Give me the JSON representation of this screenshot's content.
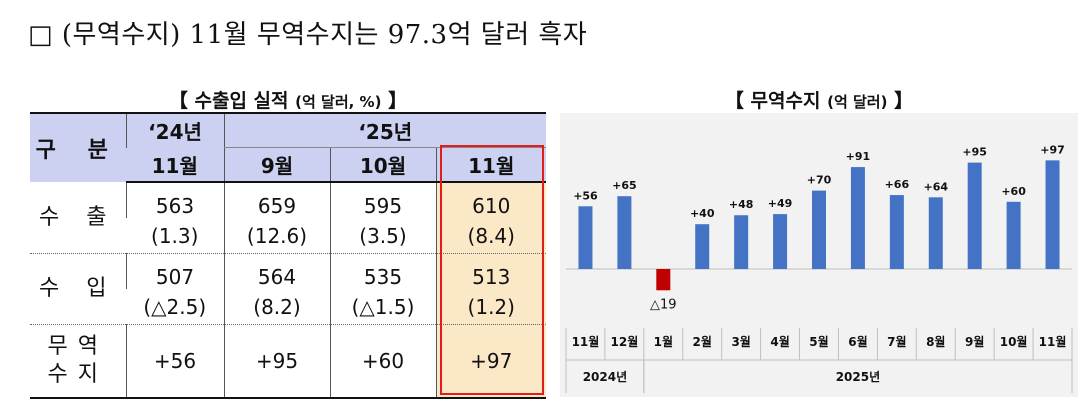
{
  "headline": "□ (무역수지) 11월 무역수지는 97.3억 달러 흑자",
  "table": {
    "title": "【 수출입 실적",
    "unit": "(억 달러, %)",
    "title_end": "】",
    "header": {
      "gubun": "구 분",
      "year24": "‘24년",
      "year25": "‘25년",
      "months": [
        "11월",
        "9월",
        "10월",
        "11월"
      ]
    },
    "rows": {
      "export": {
        "label": "수 출",
        "values": [
          "563",
          "659",
          "595",
          "610"
        ],
        "pct": [
          "(1.3)",
          "(12.6)",
          "(3.5)",
          "(8.4)"
        ]
      },
      "import": {
        "label": "수 입",
        "values": [
          "507",
          "564",
          "535",
          "513"
        ],
        "pct": [
          "(△2.5)",
          "(8.2)",
          "(△1.5)",
          "(1.2)"
        ]
      },
      "balance": {
        "label_line1": "무역",
        "label_line2": "수지",
        "values": [
          "+56",
          "+95",
          "+60",
          "+97"
        ]
      }
    },
    "highlight_color": "#fbe8c7",
    "highlight_border": "#e21b1b",
    "header_color": "#ccd1f2"
  },
  "chart": {
    "title": "【 무역수지",
    "unit": "(억 달러)",
    "title_end": "】"
  },
  "chart_data": {
    "type": "bar",
    "title": "무역수지 (억 달러)",
    "categories": [
      "11월",
      "12월",
      "1월",
      "2월",
      "3월",
      "4월",
      "5월",
      "6월",
      "7월",
      "8월",
      "9월",
      "10월",
      "11월"
    ],
    "values": [
      56,
      65,
      -19,
      40,
      48,
      49,
      70,
      91,
      66,
      64,
      95,
      60,
      97
    ],
    "data_labels": [
      "+56",
      "+65",
      "△19",
      "+40",
      "+48",
      "+49",
      "+70",
      "+91",
      "+66",
      "+64",
      "+95",
      "+60",
      "+97"
    ],
    "year_groups": [
      {
        "label": "2024년",
        "start": 0,
        "end": 1
      },
      {
        "label": "2025년",
        "start": 2,
        "end": 12
      }
    ],
    "positive_color": "#4472c4",
    "negative_color": "#c00000",
    "ylim": [
      -25,
      100
    ]
  }
}
